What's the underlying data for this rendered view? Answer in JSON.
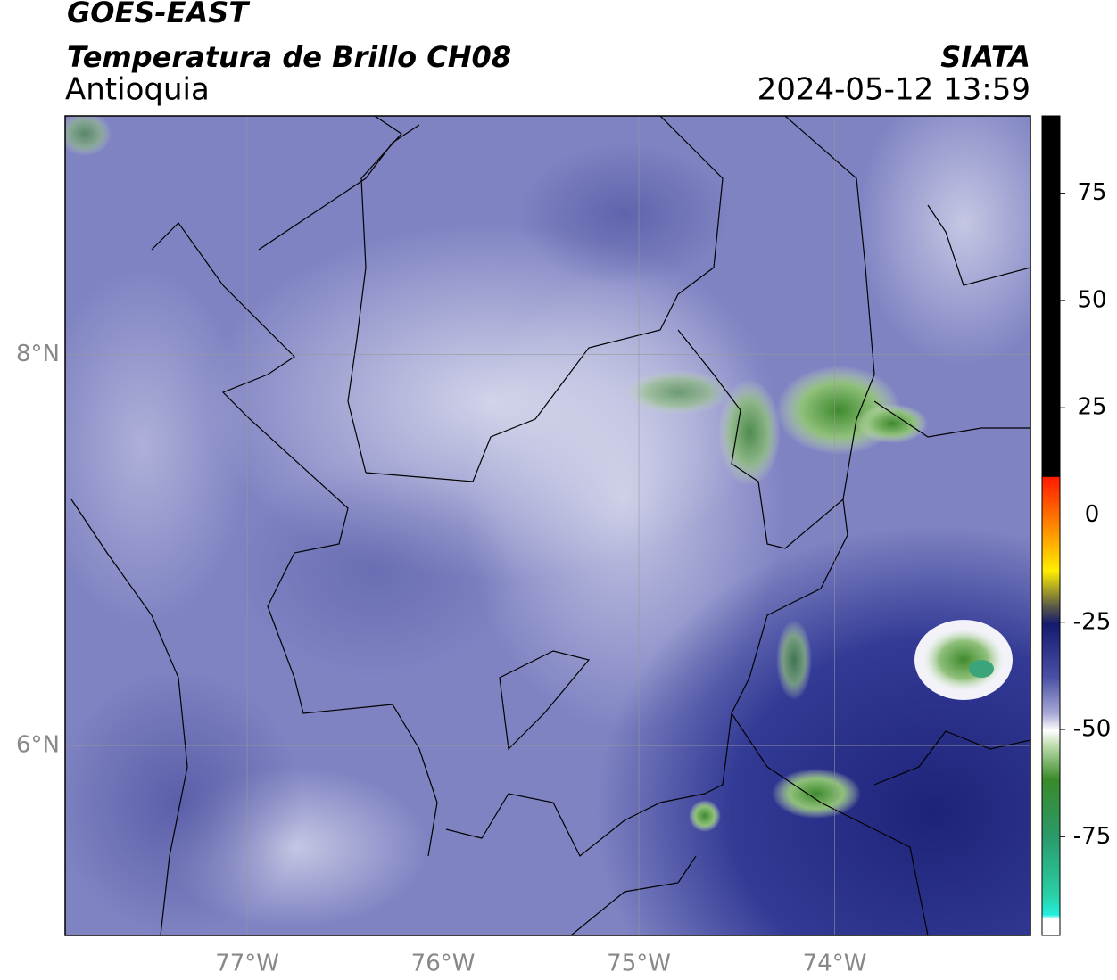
{
  "header": {
    "title": "GOES-EAST",
    "subtitle": "Temperatura de Brillo CH08",
    "region": "Antioquia",
    "agency": "SIATA",
    "timestamp": "2024-05-12 13:59"
  },
  "map": {
    "xlim": [
      -77.93,
      -73.0
    ],
    "ylim": [
      5.03,
      9.22
    ],
    "xticks": [
      {
        "value": -77,
        "label": "77°W"
      },
      {
        "value": -76,
        "label": "76°W"
      },
      {
        "value": -75,
        "label": "75°W"
      },
      {
        "value": -74,
        "label": "74°W"
      }
    ],
    "yticks": [
      {
        "value": 8,
        "label": "8°N"
      },
      {
        "value": 6,
        "label": "6°N"
      }
    ]
  },
  "colorbar": {
    "lim": [
      -98,
      93
    ],
    "ticks": [
      75,
      50,
      25,
      0,
      -25,
      -50,
      -75
    ]
  }
}
